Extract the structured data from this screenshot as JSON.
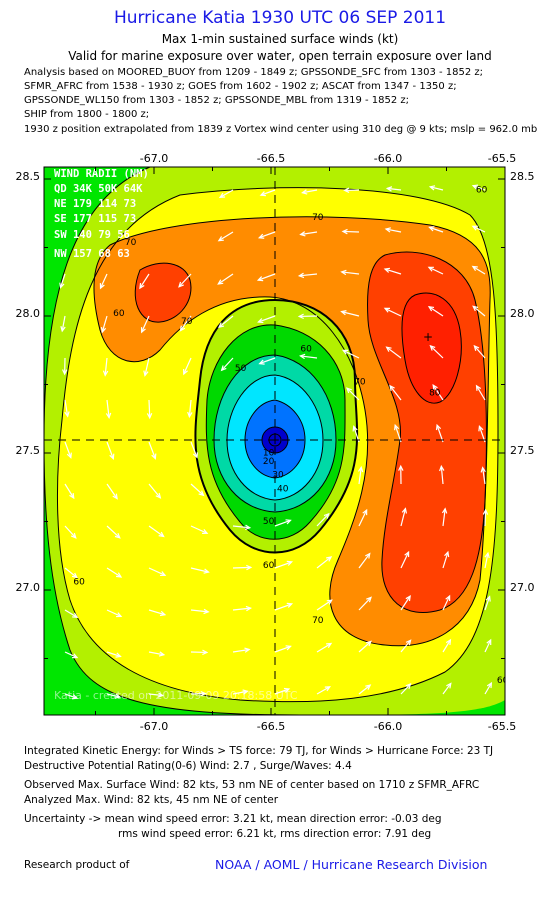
{
  "header": {
    "title": "Hurricane Katia 1930 UTC 06 SEP 2011",
    "subtitle1": "Max 1-min sustained surface winds (kt)",
    "subtitle2": "Valid for marine exposure over water, open terrain exposure over land",
    "analysis_lines": [
      "Analysis based on MOORED_BUOY from 1209 - 1849 z; GPSSONDE_SFC from 1303 - 1852 z;",
      "SFMR_AFRC from 1538 - 1930 z; GOES from 1602 - 1902 z; ASCAT from 1347 - 1350 z;",
      "GPSSONDE_WL150 from 1303 - 1852 z; GPSSONDE_MBL from 1319 - 1852 z;",
      "SHIP from 1800 - 1800 z;",
      "1930 z position extrapolated from 1839 z Vortex wind center using 310 deg @ 9 kts; mslp = 962.0 mb"
    ]
  },
  "map": {
    "lon_ticks": [
      "-67.0",
      "-66.5",
      "-66.0",
      "-65.5"
    ],
    "lat_ticks": [
      "28.5",
      "28.0",
      "27.5",
      "27.0"
    ],
    "center_marker": "+",
    "contour_labels": [
      {
        "text": "10",
        "lon": -66.51,
        "lat": 27.49
      },
      {
        "text": "20",
        "lon": -66.51,
        "lat": 27.46
      },
      {
        "text": "30",
        "lon": -66.47,
        "lat": 27.41
      },
      {
        "text": "40",
        "lon": -66.45,
        "lat": 27.36
      },
      {
        "text": "50",
        "lon": -66.51,
        "lat": 27.24
      },
      {
        "text": "60",
        "lon": -66.51,
        "lat": 27.08
      },
      {
        "text": "50",
        "lon": -66.63,
        "lat": 27.8
      },
      {
        "text": "60",
        "lon": -66.35,
        "lat": 27.87
      },
      {
        "text": "70",
        "lon": -66.86,
        "lat": 27.97
      },
      {
        "text": "70",
        "lon": -66.12,
        "lat": 27.75
      },
      {
        "text": "70",
        "lon": -66.3,
        "lat": 26.88
      },
      {
        "text": "70",
        "lon": -67.1,
        "lat": 28.26
      },
      {
        "text": "70",
        "lon": -66.3,
        "lat": 28.35
      },
      {
        "text": "60",
        "lon": -67.15,
        "lat": 28.0
      },
      {
        "text": "60",
        "lon": -65.6,
        "lat": 28.45
      },
      {
        "text": "60",
        "lon": -67.32,
        "lat": 27.02
      },
      {
        "text": "60",
        "lon": -65.51,
        "lat": 26.66
      },
      {
        "text": "80",
        "lon": -65.8,
        "lat": 27.71
      }
    ],
    "max_marker": "+",
    "legend": {
      "title": "WIND RADII (NM)",
      "header": "QD  34K  50K  64K",
      "rows": [
        "NE  179  114   73",
        "SE  177  115   73",
        "SW  140   79   56",
        "NW  157   68   63"
      ]
    },
    "watermark": "Katia  -  created on 2011-09-09 20:18:58 UTC",
    "colors": {
      "v10": "#0000cc",
      "v20": "#0073ff",
      "v30": "#00e6ff",
      "v40": "#00d9a6",
      "v50": "#00d900",
      "v60": "#b3f000",
      "v70": "#ffff00",
      "v80": "#ff8c00",
      "v90": "#ff4000",
      "outer": "#00e600",
      "grid_line": "#000000",
      "arrow": "#ffffff"
    }
  },
  "footer": {
    "ike": "Integrated Kinetic Energy:  for Winds > TS force: 79 TJ,  for Winds > Hurricane Force: 23 TJ",
    "dpr": "Destructive Potential Rating(0-6)   Wind: 2.7 , Surge/Waves: 4.4",
    "observed": "Observed Max. Surface Wind: 82 kts, 53 nm NE of center based on 1710 z SFMR_AFRC",
    "analyzed": "Analyzed Max. Wind: 82 kts, 45 nm NE of center",
    "uncert1": "Uncertainty -> mean wind speed error: 3.21 kt,   mean direction error:  -0.03 deg",
    "uncert2": "rms wind speed error: 6.21 kt,   rms direction error: 7.91 deg",
    "research": "Research product of",
    "org": "NOAA / AOML / Hurricane Research Division"
  }
}
